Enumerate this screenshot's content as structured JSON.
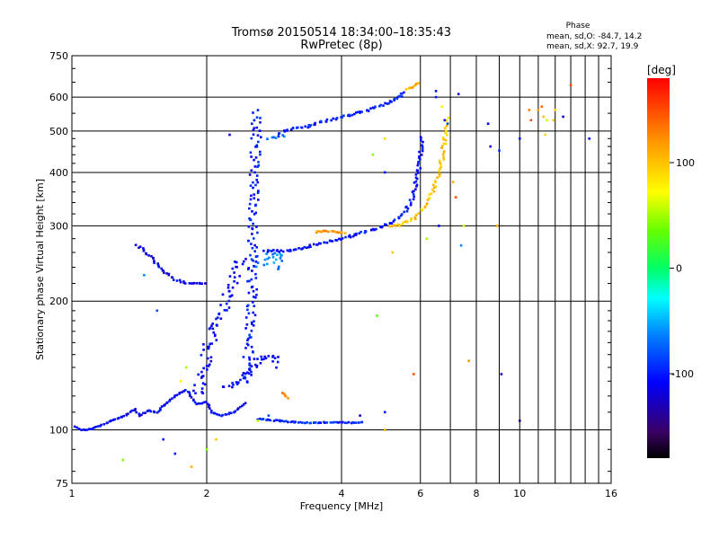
{
  "chart_data": {
    "type": "scatter",
    "title": "Tromsø 20150514 18:34:00–18:35:43",
    "subtitle": "RwPretec (8p)",
    "xlabel": "Frequency [MHz]",
    "ylabel": "Stationary phase Virtual Height [km]",
    "xscale": "log2",
    "yscale": "log",
    "xlim": [
      1,
      16
    ],
    "ylim": [
      75,
      750
    ],
    "xticks": [
      "1",
      "2",
      "4",
      "6",
      "8",
      "10",
      "16"
    ],
    "xticks_values": [
      1,
      2,
      4,
      6,
      8,
      10,
      16
    ],
    "xgrid": [
      1,
      2,
      4,
      6,
      7,
      8,
      9,
      10,
      11,
      12,
      13,
      14,
      15,
      16
    ],
    "yticks": [
      "75",
      "100",
      "200",
      "300",
      "400",
      "500",
      "600",
      "750"
    ],
    "yticks_values": [
      75,
      100,
      200,
      300,
      400,
      500,
      600,
      750
    ],
    "grid": true,
    "phase_stats": {
      "header": "Phase",
      "o_line": "mean, sd,O: -84.7, 14.2",
      "x_line": "mean, sd,X:  92.7, 19.9"
    },
    "colorbar": {
      "label": "[deg]",
      "range": [
        -180,
        180
      ],
      "ticks": [
        "100",
        "0",
        "-100"
      ],
      "ticks_values": [
        100,
        0,
        -100
      ]
    },
    "traces": [
      {
        "phase": -110,
        "spread": 0.35,
        "points": [
          [
            1.02,
            102
          ],
          [
            1.05,
            100
          ],
          [
            1.08,
            100
          ],
          [
            1.12,
            101
          ],
          [
            1.18,
            103
          ],
          [
            1.25,
            106
          ],
          [
            1.32,
            108
          ],
          [
            1.38,
            112
          ],
          [
            1.42,
            108
          ],
          [
            1.48,
            111
          ],
          [
            1.55,
            110
          ],
          [
            1.6,
            114
          ],
          [
            1.7,
            120
          ],
          [
            1.8,
            124
          ],
          [
            1.9,
            115
          ],
          [
            2.0,
            116
          ],
          [
            2.05,
            110
          ],
          [
            2.15,
            108
          ],
          [
            2.3,
            110
          ],
          [
            2.45,
            116
          ]
        ]
      },
      {
        "phase": -108,
        "spread": 2.2,
        "points": [
          [
            1.9,
            120
          ],
          [
            1.95,
            135
          ],
          [
            2.0,
            150
          ],
          [
            2.05,
            165
          ],
          [
            2.1,
            175
          ],
          [
            2.15,
            185
          ],
          [
            2.2,
            200
          ],
          [
            2.25,
            215
          ],
          [
            2.3,
            225
          ],
          [
            2.35,
            240
          ],
          [
            2.4,
            255
          ]
        ]
      },
      {
        "phase": -100,
        "spread": 1.8,
        "points": [
          [
            2.45,
            130
          ],
          [
            2.5,
            170
          ],
          [
            2.52,
            200
          ],
          [
            2.53,
            240
          ],
          [
            2.54,
            280
          ],
          [
            2.55,
            320
          ],
          [
            2.55,
            360
          ],
          [
            2.56,
            400
          ],
          [
            2.57,
            440
          ],
          [
            2.58,
            480
          ],
          [
            2.58,
            520
          ],
          [
            2.6,
            560
          ]
        ]
      },
      {
        "phase": -60,
        "spread": 2.0,
        "points": [
          [
            2.62,
            240
          ],
          [
            2.7,
            250
          ],
          [
            2.8,
            260
          ],
          [
            2.9,
            258
          ],
          [
            2.85,
            235
          ]
        ]
      },
      {
        "phase": -115,
        "spread": 0.6,
        "points": [
          [
            1.4,
            270
          ],
          [
            1.5,
            255
          ],
          [
            1.6,
            235
          ],
          [
            1.7,
            225
          ],
          [
            1.8,
            220
          ],
          [
            1.9,
            220
          ],
          [
            2.0,
            220
          ]
        ]
      },
      {
        "phase": -105,
        "spread": 0.7,
        "points": [
          [
            2.7,
            262
          ],
          [
            3.0,
            262
          ],
          [
            3.3,
            267
          ],
          [
            3.6,
            273
          ],
          [
            4.0,
            280
          ],
          [
            4.4,
            288
          ],
          [
            4.8,
            296
          ],
          [
            5.2,
            305
          ],
          [
            5.5,
            320
          ],
          [
            5.7,
            340
          ],
          [
            5.85,
            370
          ],
          [
            5.95,
            410
          ],
          [
            6.02,
            450
          ],
          [
            6.05,
            490
          ]
        ]
      },
      {
        "phase": -100,
        "spread": 0.8,
        "points": [
          [
            2.9,
            495
          ],
          [
            3.1,
            505
          ],
          [
            3.3,
            510
          ],
          [
            3.6,
            525
          ],
          [
            3.9,
            535
          ],
          [
            4.3,
            550
          ],
          [
            4.7,
            565
          ],
          [
            5.1,
            585
          ],
          [
            5.4,
            600
          ],
          [
            5.6,
            620
          ]
        ]
      },
      {
        "phase": -75,
        "spread": 0.8,
        "points": [
          [
            2.75,
            480
          ],
          [
            2.9,
            485
          ],
          [
            3.0,
            490
          ]
        ]
      },
      {
        "phase": 100,
        "spread": 0.8,
        "points": [
          [
            5.1,
            298
          ],
          [
            5.4,
            302
          ],
          [
            5.8,
            312
          ],
          [
            6.1,
            330
          ],
          [
            6.4,
            360
          ],
          [
            6.6,
            400
          ],
          [
            6.75,
            450
          ],
          [
            6.85,
            500
          ],
          [
            6.9,
            540
          ]
        ]
      },
      {
        "phase": 120,
        "spread": 0.5,
        "points": [
          [
            3.5,
            290
          ],
          [
            3.7,
            292
          ],
          [
            3.9,
            290
          ],
          [
            4.1,
            288
          ]
        ]
      },
      {
        "phase": 115,
        "spread": 0.4,
        "points": [
          [
            5.6,
            625
          ],
          [
            5.8,
            635
          ],
          [
            6.0,
            650
          ]
        ]
      },
      {
        "phase": -95,
        "spread": 0.4,
        "points": [
          [
            2.6,
            106
          ],
          [
            2.9,
            105
          ],
          [
            3.2,
            104
          ],
          [
            3.5,
            104
          ],
          [
            4.0,
            104
          ],
          [
            4.5,
            104
          ]
        ]
      },
      {
        "phase": -108,
        "spread": 1.5,
        "points": [
          [
            2.2,
            125
          ],
          [
            2.4,
            130
          ],
          [
            2.6,
            145
          ],
          [
            2.8,
            150
          ],
          [
            2.9,
            140
          ]
        ]
      },
      {
        "phase": 130,
        "spread": 0.3,
        "points": [
          [
            2.95,
            122
          ],
          [
            3.05,
            118
          ]
        ]
      }
    ],
    "scatter_points": [
      [
        6.5,
        620,
        -100
      ],
      [
        6.5,
        600,
        -100
      ],
      [
        7.3,
        610,
        -120
      ],
      [
        6.7,
        570,
        80
      ],
      [
        6.8,
        530,
        -110
      ],
      [
        8.5,
        520,
        -120
      ],
      [
        8.6,
        460,
        -110
      ],
      [
        9.0,
        450,
        -90
      ],
      [
        10.0,
        480,
        -100
      ],
      [
        10.5,
        560,
        130
      ],
      [
        10.6,
        530,
        150
      ],
      [
        11.0,
        560,
        120
      ],
      [
        11.2,
        570,
        140
      ],
      [
        11.3,
        540,
        100
      ],
      [
        11.5,
        530,
        60
      ],
      [
        11.4,
        490,
        90
      ],
      [
        11.9,
        530,
        100
      ],
      [
        12.0,
        560,
        90
      ],
      [
        12.5,
        540,
        -120
      ],
      [
        14.3,
        480,
        -110
      ],
      [
        13.0,
        640,
        150
      ],
      [
        7.1,
        380,
        110
      ],
      [
        7.2,
        350,
        150
      ],
      [
        7.5,
        300,
        60
      ],
      [
        7.4,
        270,
        -60
      ],
      [
        8.9,
        300,
        110
      ],
      [
        6.9,
        520,
        -80
      ],
      [
        5.0,
        480,
        90
      ],
      [
        4.7,
        440,
        40
      ],
      [
        5.0,
        400,
        -100
      ],
      [
        5.2,
        260,
        100
      ],
      [
        4.8,
        185,
        30
      ],
      [
        5.8,
        135,
        150
      ],
      [
        9.1,
        135,
        -130
      ],
      [
        7.7,
        145,
        120
      ],
      [
        10.0,
        105,
        -140
      ],
      [
        5.0,
        100,
        110
      ],
      [
        5.0,
        110,
        -100
      ],
      [
        3.5,
        104,
        -80
      ],
      [
        2.1,
        95,
        100
      ],
      [
        2.0,
        90,
        40
      ],
      [
        1.7,
        88,
        -100
      ],
      [
        1.6,
        95,
        -100
      ],
      [
        1.3,
        85,
        40
      ],
      [
        1.85,
        82,
        110
      ],
      [
        1.75,
        130,
        80
      ],
      [
        1.8,
        140,
        50
      ],
      [
        1.55,
        190,
        -80
      ],
      [
        1.45,
        230,
        -60
      ],
      [
        2.25,
        490,
        -110
      ],
      [
        2.6,
        105,
        60
      ],
      [
        2.75,
        108,
        -80
      ],
      [
        4.4,
        108,
        -120
      ],
      [
        6.6,
        300,
        -110
      ],
      [
        6.2,
        280,
        50
      ]
    ]
  }
}
